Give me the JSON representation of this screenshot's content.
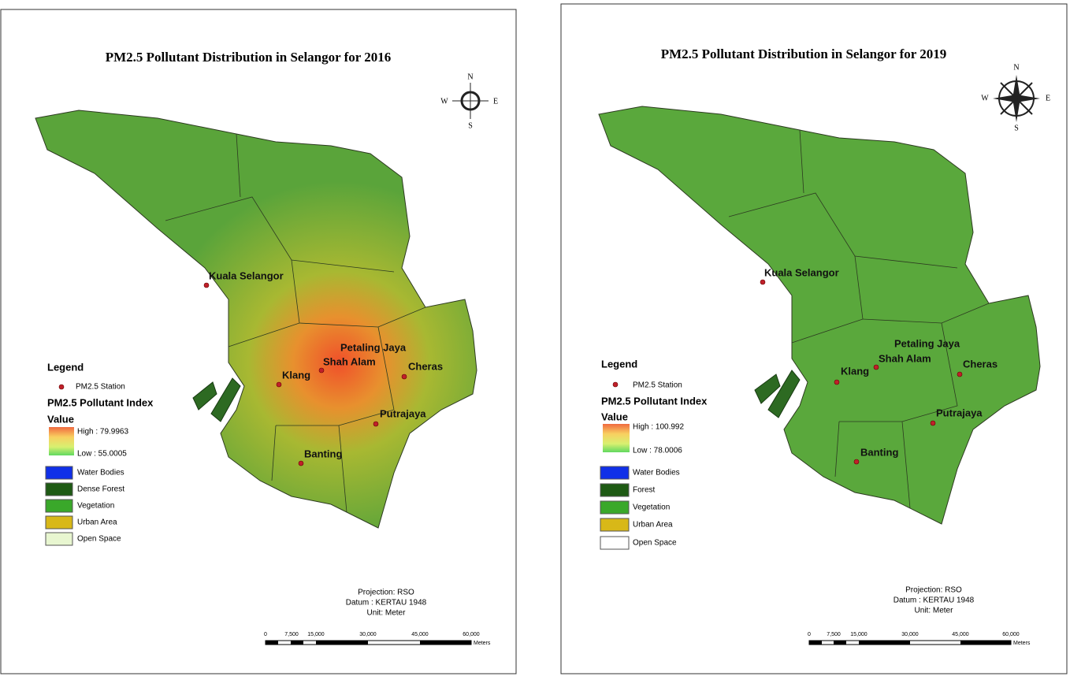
{
  "panels": [
    {
      "title": "PM2.5 Pollutant Distribution in Selangor for 2016",
      "compass": {
        "n": "N",
        "s": "S",
        "e": "E",
        "w": "W"
      },
      "stations": [
        "Kuala Selangor",
        "Petaling Jaya",
        "Shah Alam",
        "Klang",
        "Cheras",
        "Putrajaya",
        "Banting"
      ],
      "legend": {
        "title": "Legend",
        "station": "PM2.5 Station",
        "index_title": "PM2.5 Pollutant Index",
        "value_label": "Value",
        "high": "High : 79.9963",
        "low": "Low : 55.0005",
        "classes": [
          "Water Bodies",
          "Dense Forest",
          "Vegetation",
          "Urban Area",
          "Open Space"
        ]
      },
      "projection": "Projection: RSO",
      "datum": "Datum : KERTAU 1948",
      "unit": "Unit: Meter",
      "scale": {
        "ticks": [
          "0",
          "7,500",
          "15,000",
          "30,000",
          "45,000",
          "60,000"
        ],
        "unit": "Meters"
      }
    },
    {
      "title": "PM2.5 Pollutant Distribution in Selangor for 2019",
      "compass": {
        "n": "N",
        "s": "S",
        "e": "E",
        "w": "W"
      },
      "stations": [
        "Kuala Selangor",
        "Petaling Jaya",
        "Shah Alam",
        "Klang",
        "Cheras",
        "Putrajaya",
        "Banting"
      ],
      "legend": {
        "title": "Legend",
        "station": "PM2.5 Station",
        "index_title": "PM2.5 Pollutant Index",
        "value_label": "Value",
        "high": "High : 100.992",
        "low": "Low : 78.0006",
        "classes": [
          "Water Bodies",
          "Forest",
          "Vegetation",
          "Urban Area",
          "Open Space"
        ]
      },
      "projection": "Projection: RSO",
      "datum": "Datum : KERTAU 1948",
      "unit": "Unit: Meter",
      "scale": {
        "ticks": [
          "0",
          "7,500",
          "15,000",
          "30,000",
          "45,000",
          "60,000"
        ],
        "unit": "Meters"
      }
    }
  ]
}
